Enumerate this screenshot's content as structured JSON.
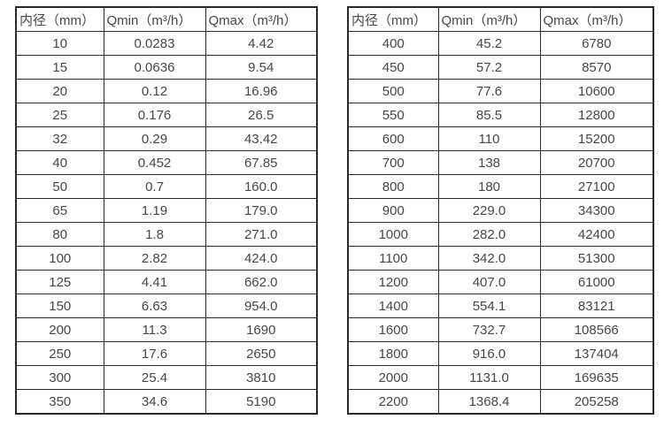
{
  "colors": {
    "background": "#ffffff",
    "border": "#2a2a2a",
    "text": "#474747"
  },
  "tables": [
    {
      "name": "small-diameter-spec-table",
      "headers": [
        "内径（mm）",
        "Qmin（m³/h）",
        "Qmax（m³/h）"
      ],
      "rows": [
        [
          "10",
          "0.0283",
          "4.42"
        ],
        [
          "15",
          "0.0636",
          "9.54"
        ],
        [
          "20",
          "0.12",
          "16.96"
        ],
        [
          "25",
          "0.176",
          "26.5"
        ],
        [
          "32",
          "0.29",
          "43.42"
        ],
        [
          "40",
          "0.452",
          "67.85"
        ],
        [
          "50",
          "0.7",
          "160.0"
        ],
        [
          "65",
          "1.19",
          "179.0"
        ],
        [
          "80",
          "1.8",
          "271.0"
        ],
        [
          "100",
          "2.82",
          "424.0"
        ],
        [
          "125",
          "4.41",
          "662.0"
        ],
        [
          "150",
          "6.63",
          "954.0"
        ],
        [
          "200",
          "11.3",
          "1690"
        ],
        [
          "250",
          "17.6",
          "2650"
        ],
        [
          "300",
          "25.4",
          "3810"
        ],
        [
          "350",
          "34.6",
          "5190"
        ]
      ]
    },
    {
      "name": "large-diameter-spec-table",
      "headers": [
        "内径（mm）",
        "Qmin（m³/h）",
        "Qmax（m³/h）"
      ],
      "rows": [
        [
          "400",
          "45.2",
          "6780"
        ],
        [
          "450",
          "57.2",
          "8570"
        ],
        [
          "500",
          "77.6",
          "10600"
        ],
        [
          "550",
          "85.5",
          "12800"
        ],
        [
          "600",
          "110",
          "15200"
        ],
        [
          "700",
          "138",
          "20700"
        ],
        [
          "800",
          "180",
          "27100"
        ],
        [
          "900",
          "229.0",
          "34300"
        ],
        [
          "1000",
          "282.0",
          "42400"
        ],
        [
          "1100",
          "342.0",
          "51300"
        ],
        [
          "1200",
          "407.0",
          "61000"
        ],
        [
          "1400",
          "554.1",
          "83121"
        ],
        [
          "1600",
          "732.7",
          "108566"
        ],
        [
          "1800",
          "916.0",
          "137404"
        ],
        [
          "2000",
          "1131.0",
          "169635"
        ],
        [
          "2200",
          "1368.4",
          "205258"
        ]
      ]
    }
  ]
}
